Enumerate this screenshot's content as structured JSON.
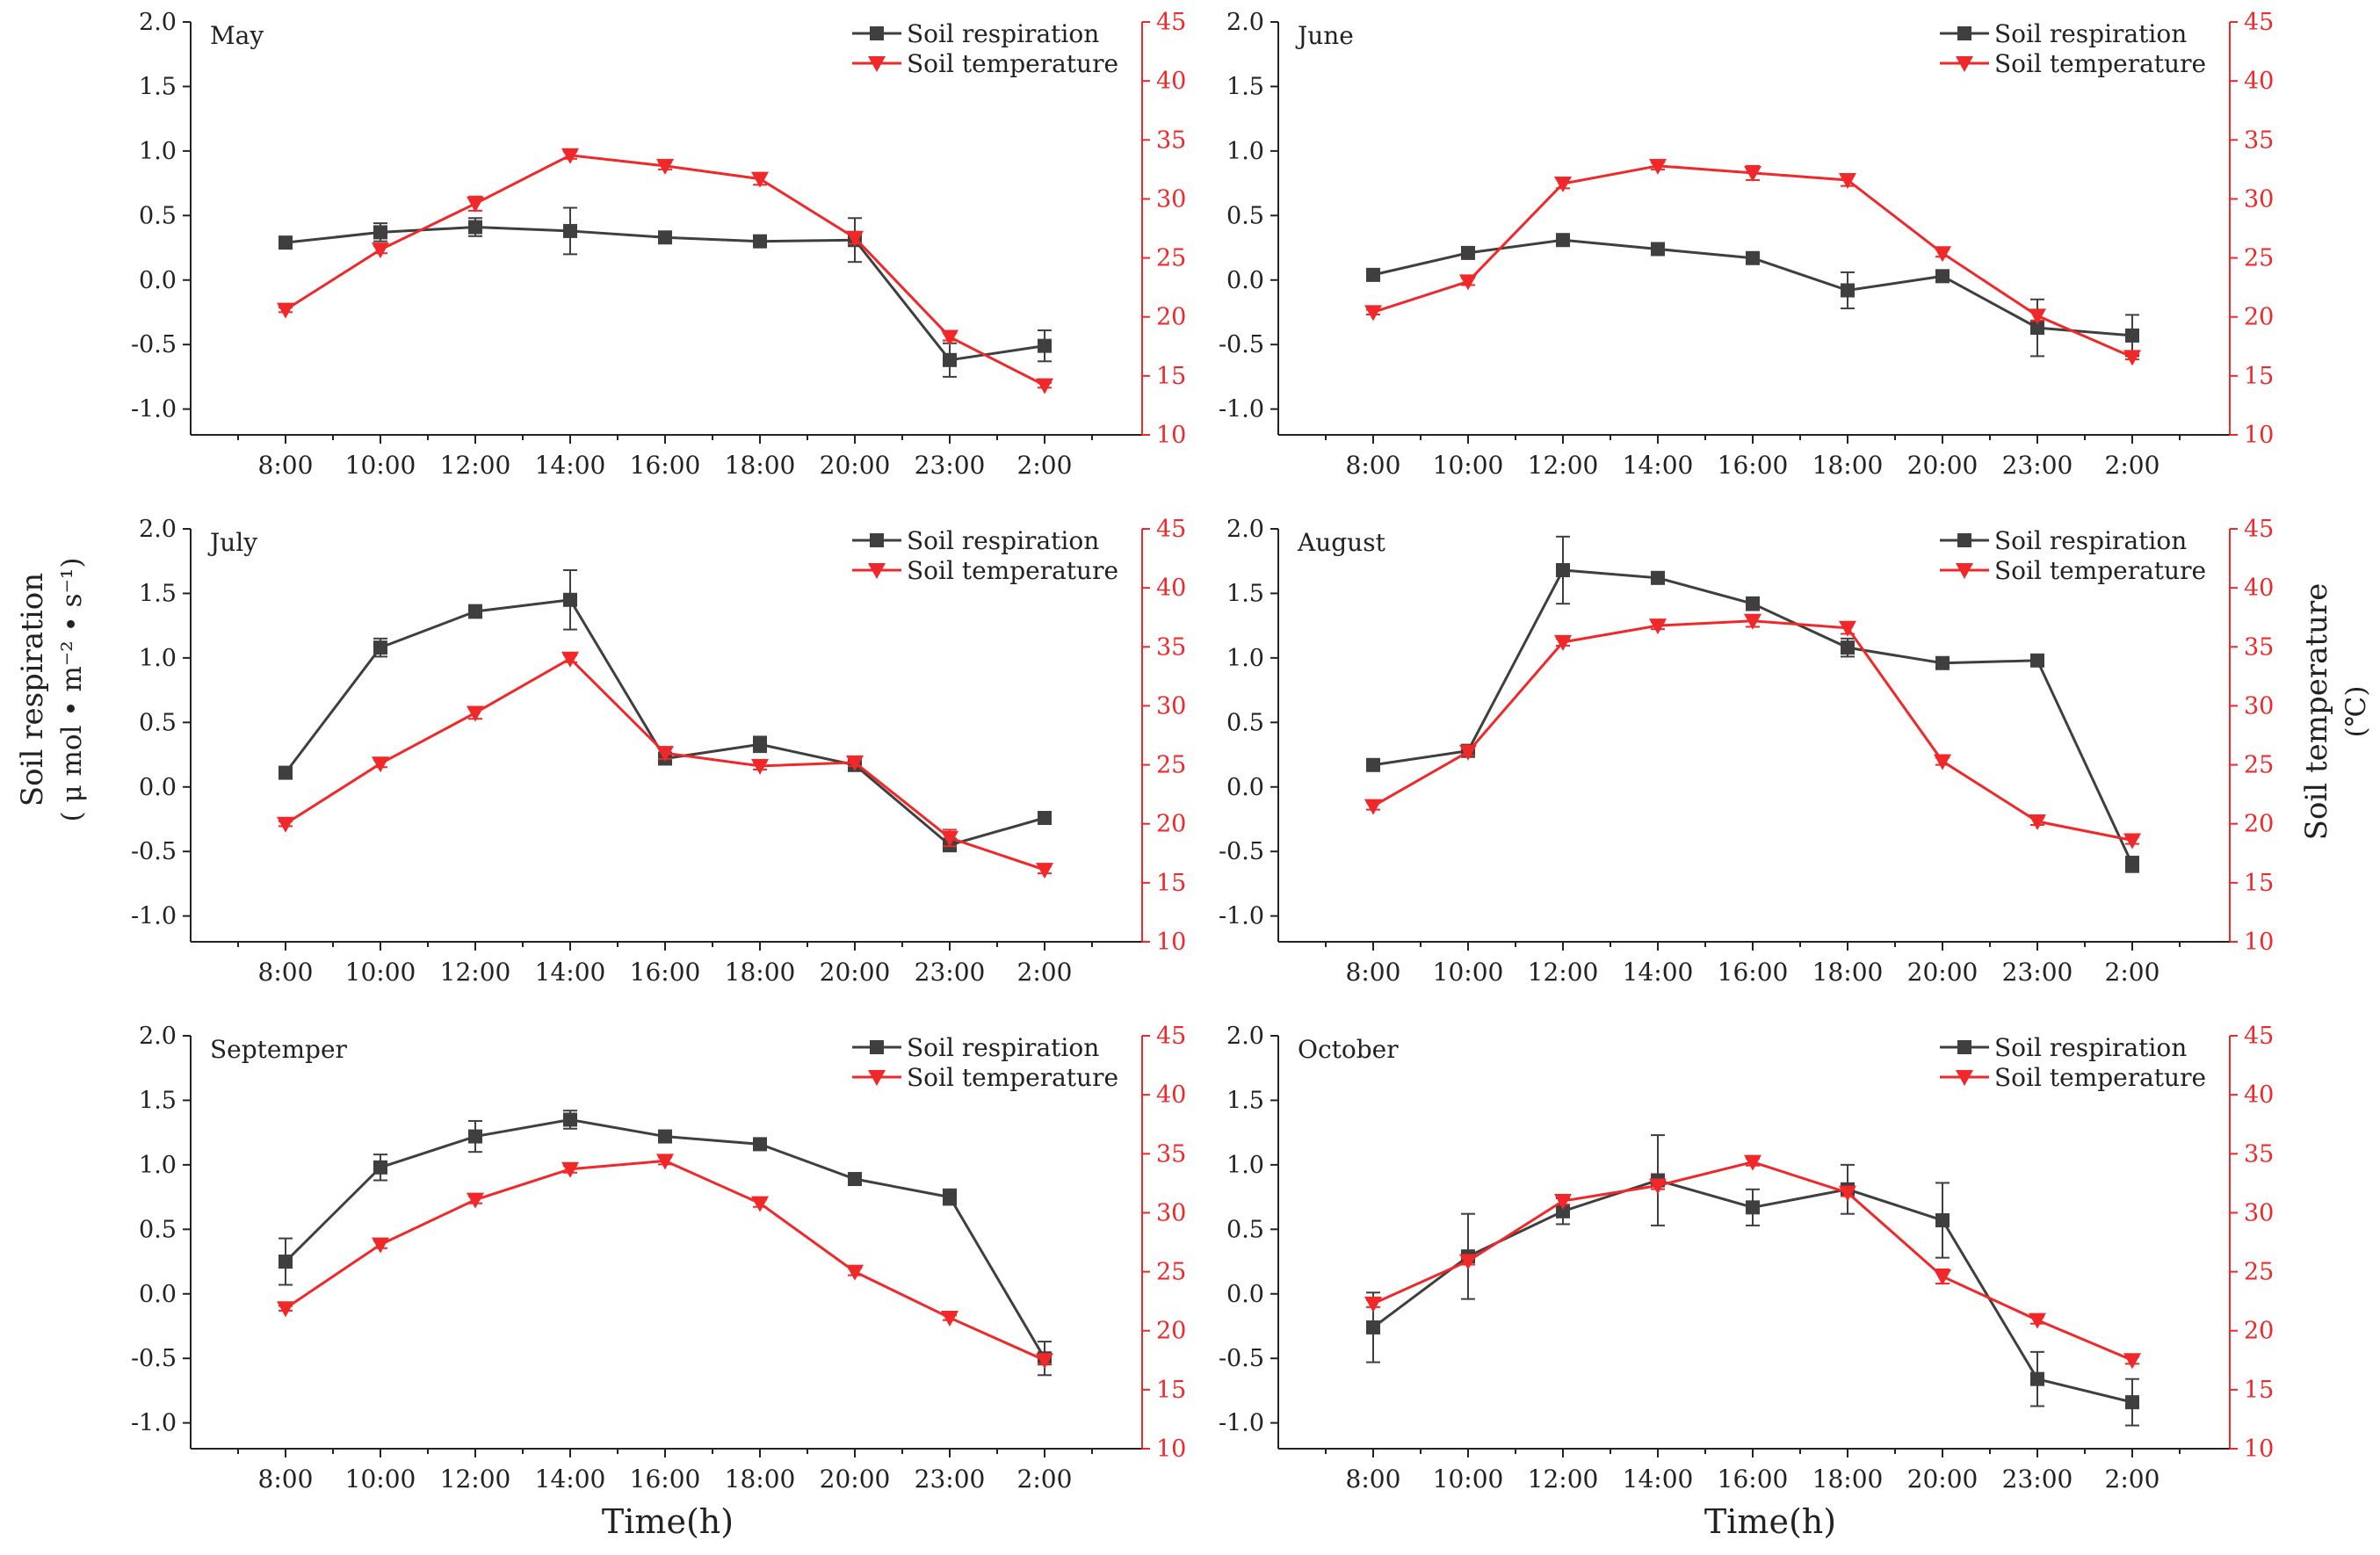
{
  "figure": {
    "shared_ylabel_left": [
      "Soil respiration",
      "( μ mol • m⁻² • s⁻¹)"
    ],
    "shared_ylabel_right": [
      "Soil temperature",
      "(℃)"
    ],
    "shared_xlabel": "Time(h)",
    "legend": {
      "respiration": "Soil respiration",
      "temperature": "Soil temperature"
    },
    "colors": {
      "respiration": "#3f3f3f",
      "temperature": "#f0282a",
      "axis": "#222222"
    }
  },
  "chart_data": [
    {
      "type": "line",
      "title": "May",
      "categories": [
        "8:00",
        "10:00",
        "12:00",
        "14:00",
        "16:00",
        "18:00",
        "20:00",
        "23:00",
        "2:00"
      ],
      "ylim_left": [
        -1.2,
        2.0
      ],
      "yticks_left": [
        "2.0",
        "1.5",
        "1.0",
        "0.5",
        "0.0",
        "-0.5",
        "-1.0"
      ],
      "ylim_right": [
        10,
        45
      ],
      "yticks_right": [
        "45",
        "40",
        "35",
        "30",
        "25",
        "20",
        "15",
        "10"
      ],
      "series": [
        {
          "name": "Soil respiration",
          "axis": "left",
          "marker": "square",
          "values": [
            0.29,
            0.37,
            0.41,
            0.38,
            0.33,
            0.3,
            0.31,
            -0.62,
            -0.51
          ],
          "errors": [
            0.03,
            0.07,
            0.07,
            0.18,
            0.02,
            0.02,
            0.17,
            0.13,
            0.12
          ]
        },
        {
          "name": "Soil temperature",
          "axis": "right",
          "marker": "triangle-down",
          "values": [
            20.6,
            25.7,
            29.6,
            33.7,
            32.8,
            31.7,
            26.7,
            18.3,
            14.2
          ],
          "errors": [
            0.2,
            0.3,
            0.6,
            0.3,
            0.3,
            0.5,
            0.5,
            0.3,
            0.2
          ]
        }
      ]
    },
    {
      "type": "line",
      "title": "June",
      "categories": [
        "8:00",
        "10:00",
        "12:00",
        "14:00",
        "16:00",
        "18:00",
        "20:00",
        "23:00",
        "2:00"
      ],
      "ylim_left": [
        -1.2,
        2.0
      ],
      "yticks_left": [
        "2.0",
        "1.5",
        "1.0",
        "0.5",
        "0.0",
        "-0.5",
        "-1.0"
      ],
      "ylim_right": [
        10,
        45
      ],
      "yticks_right": [
        "45",
        "40",
        "35",
        "30",
        "25",
        "20",
        "15",
        "10"
      ],
      "series": [
        {
          "name": "Soil respiration",
          "axis": "left",
          "marker": "square",
          "values": [
            0.04,
            0.21,
            0.31,
            0.24,
            0.17,
            -0.08,
            0.03,
            -0.37,
            -0.43
          ],
          "errors": [
            0.02,
            0.02,
            0.02,
            0.03,
            0.02,
            0.14,
            0.03,
            0.22,
            0.16
          ]
        },
        {
          "name": "Soil temperature",
          "axis": "right",
          "marker": "triangle-down",
          "values": [
            20.4,
            23.0,
            31.3,
            32.8,
            32.2,
            31.6,
            25.4,
            20.1,
            16.6
          ],
          "errors": [
            0.2,
            0.3,
            0.4,
            0.3,
            0.6,
            0.5,
            0.3,
            0.4,
            0.2
          ]
        }
      ]
    },
    {
      "type": "line",
      "title": "July",
      "categories": [
        "8:00",
        "10:00",
        "12:00",
        "14:00",
        "16:00",
        "18:00",
        "20:00",
        "23:00",
        "2:00"
      ],
      "ylim_left": [
        -1.2,
        2.0
      ],
      "yticks_left": [
        "2.0",
        "1.5",
        "1.0",
        "0.5",
        "0.0",
        "-0.5",
        "-1.0"
      ],
      "ylim_right": [
        10,
        45
      ],
      "yticks_right": [
        "45",
        "40",
        "35",
        "30",
        "25",
        "20",
        "15",
        "10"
      ],
      "series": [
        {
          "name": "Soil respiration",
          "axis": "left",
          "marker": "square",
          "values": [
            0.11,
            1.08,
            1.36,
            1.45,
            0.22,
            0.33,
            0.17,
            -0.45,
            -0.24
          ],
          "errors": [
            0.02,
            0.07,
            0.05,
            0.23,
            0.04,
            0.06,
            0.02,
            0.05,
            0.02
          ]
        },
        {
          "name": "Soil temperature",
          "axis": "right",
          "marker": "triangle-down",
          "values": [
            20.0,
            25.1,
            29.4,
            34.0,
            26.0,
            24.9,
            25.2,
            18.8,
            16.1
          ],
          "errors": [
            0.2,
            0.3,
            0.5,
            0.3,
            0.5,
            0.3,
            0.3,
            0.7,
            0.3
          ]
        }
      ]
    },
    {
      "type": "line",
      "title": "August",
      "categories": [
        "8:00",
        "10:00",
        "12:00",
        "14:00",
        "16:00",
        "18:00",
        "20:00",
        "23:00",
        "2:00"
      ],
      "ylim_left": [
        -1.2,
        2.0
      ],
      "yticks_left": [
        "2.0",
        "1.5",
        "1.0",
        "0.5",
        "0.0",
        "-0.5",
        "-1.0"
      ],
      "ylim_right": [
        10,
        45
      ],
      "yticks_right": [
        "45",
        "40",
        "35",
        "30",
        "25",
        "20",
        "15",
        "10"
      ],
      "series": [
        {
          "name": "Soil respiration",
          "axis": "left",
          "marker": "square",
          "values": [
            0.17,
            0.28,
            1.68,
            1.62,
            1.42,
            1.08,
            0.96,
            0.98,
            -0.6
          ],
          "errors": [
            0.02,
            0.02,
            0.26,
            0.02,
            0.05,
            0.07,
            0.02,
            0.02,
            0.06
          ]
        },
        {
          "name": "Soil temperature",
          "axis": "right",
          "marker": "triangle-down",
          "values": [
            21.5,
            26.1,
            35.4,
            36.8,
            37.2,
            36.6,
            25.3,
            20.2,
            18.6
          ],
          "errors": [
            0.3,
            0.3,
            0.3,
            0.3,
            0.5,
            0.5,
            0.3,
            0.3,
            0.3
          ]
        }
      ]
    },
    {
      "type": "line",
      "title": "Septemper",
      "categories": [
        "8:00",
        "10:00",
        "12:00",
        "14:00",
        "16:00",
        "18:00",
        "20:00",
        "23:00",
        "2:00"
      ],
      "ylim_left": [
        -1.2,
        2.0
      ],
      "yticks_left": [
        "2.0",
        "1.5",
        "1.0",
        "0.5",
        "0.0",
        "-0.5",
        "-1.0"
      ],
      "ylim_right": [
        10,
        45
      ],
      "yticks_right": [
        "45",
        "40",
        "35",
        "30",
        "25",
        "20",
        "15",
        "10"
      ],
      "series": [
        {
          "name": "Soil respiration",
          "axis": "left",
          "marker": "square",
          "values": [
            0.25,
            0.98,
            1.22,
            1.35,
            1.22,
            1.16,
            0.89,
            0.75,
            -0.5
          ],
          "errors": [
            0.18,
            0.1,
            0.12,
            0.07,
            0.03,
            0.03,
            0.03,
            0.06,
            0.13
          ]
        },
        {
          "name": "Soil temperature",
          "axis": "right",
          "marker": "triangle-down",
          "values": [
            21.9,
            27.3,
            31.1,
            33.7,
            34.4,
            30.8,
            25.0,
            21.1,
            17.5
          ],
          "errors": [
            0.2,
            0.3,
            0.3,
            0.3,
            0.3,
            0.3,
            0.3,
            0.2,
            0.3
          ]
        }
      ]
    },
    {
      "type": "line",
      "title": "October",
      "categories": [
        "8:00",
        "10:00",
        "12:00",
        "14:00",
        "16:00",
        "18:00",
        "20:00",
        "23:00",
        "2:00"
      ],
      "ylim_left": [
        -1.2,
        2.0
      ],
      "yticks_left": [
        "2.0",
        "1.5",
        "1.0",
        "0.5",
        "0.0",
        "-0.5",
        "-1.0"
      ],
      "ylim_right": [
        10,
        45
      ],
      "yticks_right": [
        "45",
        "40",
        "35",
        "30",
        "25",
        "20",
        "15",
        "10"
      ],
      "series": [
        {
          "name": "Soil respiration",
          "axis": "left",
          "marker": "square",
          "values": [
            -0.26,
            0.29,
            0.64,
            0.88,
            0.67,
            0.81,
            0.57,
            -0.66,
            -0.84
          ],
          "errors": [
            0.27,
            0.33,
            0.1,
            0.35,
            0.14,
            0.19,
            0.29,
            0.21,
            0.18
          ]
        },
        {
          "name": "Soil temperature",
          "axis": "right",
          "marker": "triangle-down",
          "values": [
            22.3,
            25.9,
            31.0,
            32.3,
            34.3,
            31.7,
            24.6,
            20.9,
            17.5
          ],
          "errors": [
            0.3,
            0.3,
            0.3,
            0.3,
            0.3,
            0.3,
            0.6,
            0.3,
            0.3
          ]
        }
      ]
    }
  ]
}
